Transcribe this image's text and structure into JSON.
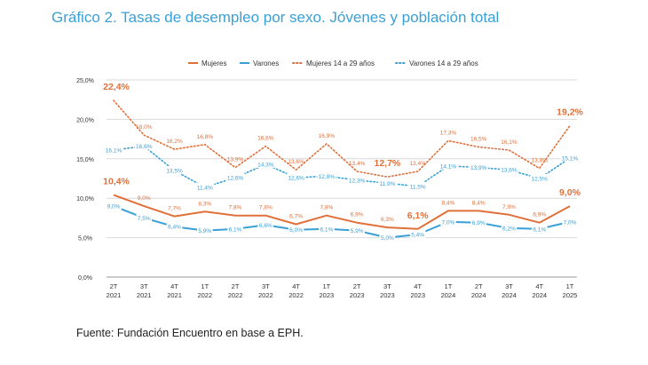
{
  "title": "Gráfico 2. Tasas de desempleo por sexo. Jóvenes y población total",
  "source": "Fuente: Fundación Encuentro en base a EPH.",
  "colors": {
    "orange": "#e0703a",
    "blue": "#3aa0d5",
    "grid": "#d9d9d9",
    "axis": "#333333"
  },
  "chart_data": {
    "type": "line",
    "categories": [
      [
        "2T",
        "2021"
      ],
      [
        "3T",
        "2021"
      ],
      [
        "4T",
        "2021"
      ],
      [
        "1T",
        "2022"
      ],
      [
        "2T",
        "2022"
      ],
      [
        "3T",
        "2022"
      ],
      [
        "4T",
        "2022"
      ],
      [
        "1T",
        "2023"
      ],
      [
        "2T",
        "2023"
      ],
      [
        "3T",
        "2023"
      ],
      [
        "4T",
        "2023"
      ],
      [
        "1T",
        "2024"
      ],
      [
        "2T",
        "2024"
      ],
      [
        "3T",
        "2024"
      ],
      [
        "4T",
        "2024"
      ],
      [
        "1T",
        "2025"
      ]
    ],
    "ylim": [
      0,
      25
    ],
    "yticks": [
      "0,0%",
      "5,0%",
      "10,0%",
      "15,0%",
      "20,0%",
      "25,0%"
    ],
    "grid": true,
    "legend_position": "top",
    "series": [
      {
        "name": "Mujeres",
        "style": "solid",
        "color": "#e0703a",
        "values": [
          10.4,
          9.0,
          7.7,
          8.3,
          7.8,
          7.8,
          6.7,
          7.8,
          6.9,
          6.3,
          6.1,
          8.4,
          8.4,
          7.9,
          6.9,
          9.0
        ],
        "labels": [
          "10,4%",
          "9,0%",
          "7,7%",
          "8,3%",
          "7,8%",
          "7,8%",
          "6,7%",
          "7,8%",
          "6,9%",
          "6,3%",
          "6,1%",
          "8,4%",
          "8,4%",
          "7,9%",
          "6,9%",
          "9,0%"
        ],
        "bold": [
          0,
          10,
          15
        ]
      },
      {
        "name": "Varones",
        "style": "solid",
        "color": "#3aa0d5",
        "values": [
          9.0,
          7.5,
          6.4,
          5.9,
          6.1,
          6.6,
          6.0,
          6.1,
          5.9,
          5.0,
          5.4,
          7.0,
          6.9,
          6.2,
          6.1,
          7.0
        ],
        "labels": [
          "9,0%",
          "7,5%",
          "6,4%",
          "5,9%",
          "6,1%",
          "6,6%",
          "6,0%",
          "6,1%",
          "5,9%",
          "5,0%",
          "5,4%",
          "7,0%",
          "6,9%",
          "6,2%",
          "6,1%",
          "7,0%"
        ],
        "bold": []
      },
      {
        "name": "Mujeres 14 a 29 años",
        "style": "dotted",
        "color": "#e0703a",
        "values": [
          22.4,
          18.0,
          16.2,
          16.8,
          13.9,
          16.6,
          13.6,
          16.9,
          13.4,
          12.7,
          13.4,
          17.3,
          16.5,
          16.1,
          13.8,
          19.2
        ],
        "labels": [
          "22,4%",
          "18,0%",
          "16,2%",
          "16,8%",
          "13,9%",
          "16,6%",
          "13,6%",
          "16,9%",
          "13,4%",
          "12,7%",
          "13,4%",
          "17,3%",
          "16,5%",
          "16,1%",
          "13,8%",
          "19,2%"
        ],
        "bold": [
          0,
          9,
          15
        ]
      },
      {
        "name": "Varones 14 a 29 años",
        "style": "dotted",
        "color": "#3aa0d5",
        "values": [
          16.1,
          16.6,
          13.5,
          11.4,
          12.6,
          14.3,
          12.6,
          12.8,
          12.3,
          11.9,
          11.5,
          14.1,
          13.9,
          13.6,
          12.5,
          15.1
        ],
        "labels": [
          "16,1%",
          "16,6%",
          "13,5%",
          "11,4%",
          "12,6%",
          "14,3%",
          "12,6%",
          "12,8%",
          "12,3%",
          "11,9%",
          "11,5%",
          "14,1%",
          "13,9%",
          "13,6%",
          "12,5%",
          "15,1%"
        ],
        "bold": []
      }
    ]
  }
}
